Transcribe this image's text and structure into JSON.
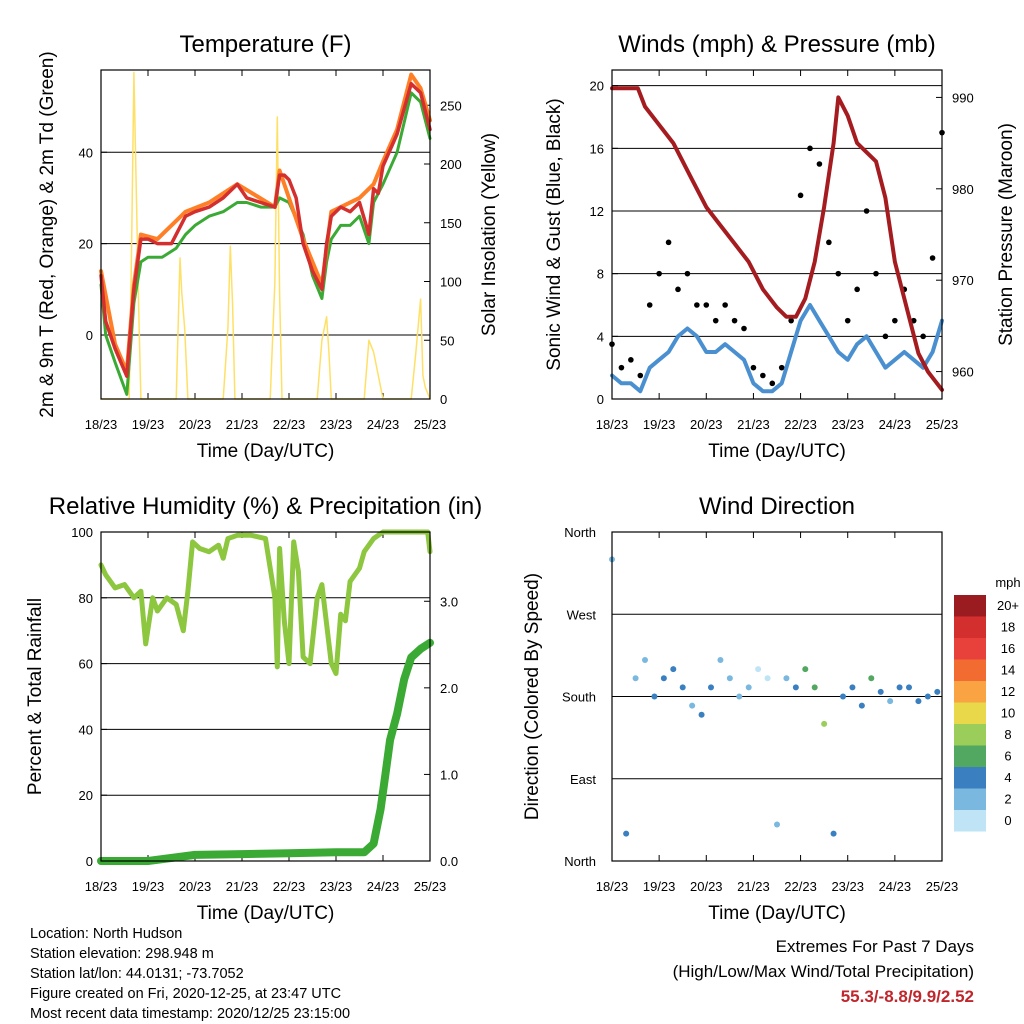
{
  "chart_data": [
    {
      "type": "line",
      "title": "Temperature (F)",
      "xlabel": "Time (Day/UTC)",
      "ylabel": "2m & 9m T (Red, Orange) & 2m Td (Green)",
      "ylabel_right": "Solar Insolation (Yellow)",
      "x_ticks": [
        "18/23",
        "19/23",
        "20/23",
        "21/23",
        "22/23",
        "23/23",
        "24/23",
        "25/23"
      ],
      "y_ticks": [
        "0",
        "20",
        "40"
      ],
      "y_ticks_right": [
        "0",
        "50",
        "100",
        "150",
        "200",
        "250"
      ],
      "ylim": [
        -14,
        58
      ],
      "ylim_right": [
        0,
        280
      ],
      "grid": true,
      "colors": {
        "t2m": "#d32f2f",
        "t9m": "#ff7f27",
        "td2m": "#3aaa35",
        "solar": "#ffe066"
      },
      "series": [
        {
          "key": "t2m",
          "x": [
            0,
            0.1,
            0.3,
            0.55,
            0.7,
            0.85,
            1.0,
            1.2,
            1.5,
            1.8,
            2.0,
            2.3,
            2.6,
            2.9,
            3.1,
            3.4,
            3.7,
            3.8,
            3.9,
            4.0,
            4.15,
            4.3,
            4.5,
            4.7,
            4.8,
            4.9,
            5.1,
            5.3,
            5.5,
            5.7,
            5.8,
            5.9,
            6.0,
            6.3,
            6.6,
            6.8,
            7.0
          ],
          "values": [
            13,
            3,
            -3,
            -9,
            10,
            21,
            21,
            20,
            20,
            26,
            27,
            28,
            30,
            33,
            30,
            29,
            28,
            35,
            35,
            34,
            30,
            20,
            14,
            10,
            20,
            26,
            28,
            27,
            29,
            22,
            32,
            31,
            37,
            44,
            55,
            53,
            45
          ]
        },
        {
          "key": "t9m",
          "x": [
            0,
            0.3,
            0.55,
            0.7,
            0.85,
            1.2,
            1.8,
            2.3,
            2.9,
            3.7,
            3.8,
            4.3,
            4.7,
            4.9,
            5.5,
            5.8,
            6.0,
            6.3,
            6.6,
            6.8,
            7.0
          ],
          "values": [
            14,
            -2,
            -8,
            11,
            22,
            21,
            27,
            29,
            33,
            28,
            36,
            21,
            11,
            27,
            30,
            33,
            38,
            45,
            57,
            54,
            47
          ]
        },
        {
          "key": "td2m",
          "x": [
            0,
            0.1,
            0.3,
            0.55,
            0.7,
            0.85,
            1.0,
            1.3,
            1.6,
            1.8,
            2.0,
            2.3,
            2.6,
            2.9,
            3.1,
            3.4,
            3.7,
            3.8,
            4.0,
            4.3,
            4.5,
            4.7,
            4.8,
            4.9,
            5.1,
            5.3,
            5.5,
            5.7,
            5.8,
            6.0,
            6.3,
            6.6,
            6.8,
            7.0
          ],
          "values": [
            11,
            0,
            -6,
            -13,
            7,
            16,
            17,
            17,
            19,
            22,
            24,
            26,
            27,
            29,
            29,
            28,
            28,
            30,
            29,
            22,
            13,
            8,
            16,
            21,
            24,
            24,
            26,
            20,
            29,
            33,
            40,
            53,
            51,
            43
          ]
        },
        {
          "key": "solar",
          "x": [
            0,
            0.6,
            0.65,
            0.7,
            0.8,
            0.85,
            1.0,
            1.6,
            1.68,
            1.72,
            1.78,
            1.85,
            2.0,
            2.6,
            2.7,
            2.75,
            2.8,
            2.85,
            3.0,
            3.6,
            3.7,
            3.75,
            3.8,
            3.85,
            4.0,
            4.6,
            4.7,
            4.8,
            4.85,
            4.9,
            5.0,
            5.6,
            5.7,
            5.8,
            5.9,
            6.0,
            6.6,
            6.7,
            6.8,
            6.85,
            6.9,
            7.0
          ],
          "values": [
            0,
            0,
            130,
            278,
            80,
            0,
            0,
            0,
            120,
            90,
            60,
            0,
            0,
            0,
            60,
            130,
            80,
            0,
            0,
            0,
            100,
            240,
            90,
            0,
            0,
            0,
            50,
            70,
            40,
            0,
            0,
            0,
            50,
            40,
            20,
            0,
            0,
            40,
            85,
            20,
            10,
            0
          ]
        }
      ]
    },
    {
      "type": "scatter",
      "title": "Winds (mph) & Pressure (mb)",
      "xlabel": "Time (Day/UTC)",
      "ylabel": "Sonic Wind & Gust (Blue, Black)",
      "ylabel_right": "Station Pressure (Maroon)",
      "x_ticks": [
        "18/23",
        "19/23",
        "20/23",
        "21/23",
        "22/23",
        "23/23",
        "24/23",
        "25/23"
      ],
      "y_ticks": [
        "0",
        "4",
        "8",
        "12",
        "16",
        "20"
      ],
      "y_ticks_right": [
        "960",
        "970",
        "980",
        "990"
      ],
      "ylim": [
        0,
        21
      ],
      "ylim_right": [
        957,
        993
      ],
      "grid": true,
      "colors": {
        "wind": "#4a90d0",
        "gust": "#000000",
        "pressure": "#a51c20"
      },
      "series": [
        {
          "key": "wind",
          "x": [
            0,
            0.2,
            0.4,
            0.6,
            0.8,
            1.0,
            1.2,
            1.4,
            1.6,
            1.8,
            2.0,
            2.2,
            2.4,
            2.6,
            2.8,
            3.0,
            3.2,
            3.4,
            3.6,
            3.8,
            4.0,
            4.2,
            4.4,
            4.6,
            4.8,
            5.0,
            5.2,
            5.4,
            5.6,
            5.8,
            6.0,
            6.2,
            6.4,
            6.6,
            6.8,
            7.0
          ],
          "values": [
            1.5,
            1,
            1,
            0.5,
            2,
            2.5,
            3,
            4,
            4.5,
            4,
            3,
            3,
            3.5,
            3,
            2.5,
            1,
            0.5,
            0.5,
            1,
            3,
            5,
            6,
            5,
            4,
            3,
            2.5,
            3.5,
            4,
            3,
            2,
            2.5,
            3,
            2.5,
            2,
            3,
            5
          ]
        },
        {
          "key": "gust",
          "x": [
            0,
            0.2,
            0.4,
            0.6,
            0.8,
            1.0,
            1.2,
            1.4,
            1.6,
            1.8,
            2.0,
            2.2,
            2.4,
            2.6,
            2.8,
            3.0,
            3.2,
            3.4,
            3.6,
            3.8,
            4.0,
            4.2,
            4.4,
            4.6,
            4.8,
            5.0,
            5.2,
            5.4,
            5.6,
            5.8,
            6.0,
            6.2,
            6.4,
            6.6,
            6.8,
            7.0
          ],
          "values": [
            3.5,
            2,
            2.5,
            1.5,
            6,
            8,
            10,
            7,
            8,
            6,
            6,
            5,
            6,
            5,
            4.5,
            2,
            1.5,
            1,
            2,
            5,
            13,
            16,
            15,
            10,
            8,
            5,
            7,
            12,
            8,
            4,
            5,
            7,
            5,
            4,
            9,
            17
          ]
        },
        {
          "key": "pressure",
          "x": [
            0,
            0.2,
            0.55,
            0.7,
            1.0,
            1.3,
            1.7,
            2.0,
            2.3,
            2.6,
            2.9,
            3.2,
            3.5,
            3.7,
            3.9,
            4.1,
            4.3,
            4.5,
            4.7,
            4.8,
            5.0,
            5.2,
            5.4,
            5.6,
            5.8,
            6.0,
            6.3,
            6.5,
            6.7,
            6.85,
            7.0
          ],
          "values": [
            991,
            991,
            991,
            989,
            987,
            985,
            981,
            978,
            976,
            974,
            972,
            969,
            967,
            966,
            966,
            968,
            972,
            978,
            985,
            990,
            988,
            985,
            984,
            983,
            979,
            972,
            966,
            962,
            960,
            959,
            958
          ]
        }
      ]
    },
    {
      "type": "line",
      "title": "Relative Humidity (%) & Precipitation (in)",
      "xlabel": "Time (Day/UTC)",
      "ylabel": "Percent & Total Rainfall",
      "x_ticks": [
        "18/23",
        "19/23",
        "20/23",
        "21/23",
        "22/23",
        "23/23",
        "24/23",
        "25/23"
      ],
      "y_ticks": [
        "0",
        "20",
        "40",
        "60",
        "80",
        "100"
      ],
      "y_ticks_right": [
        "0.0",
        "1.0",
        "2.0",
        "3.0"
      ],
      "ylim": [
        0,
        100
      ],
      "ylim_right": [
        0,
        3.8
      ],
      "grid": true,
      "colors": {
        "rh": "#8dc63f",
        "precip": "#3aaa35"
      },
      "series": [
        {
          "key": "rh",
          "x": [
            0,
            0.1,
            0.3,
            0.5,
            0.7,
            0.85,
            0.95,
            1.1,
            1.2,
            1.4,
            1.6,
            1.75,
            1.85,
            1.95,
            2.1,
            2.3,
            2.5,
            2.6,
            2.7,
            2.9,
            3.2,
            3.5,
            3.7,
            3.75,
            3.8,
            3.9,
            4.0,
            4.1,
            4.2,
            4.3,
            4.45,
            4.6,
            4.7,
            4.8,
            4.9,
            5.0,
            5.1,
            5.2,
            5.3,
            5.5,
            5.6,
            5.8,
            6.0,
            6.2,
            6.4,
            6.6,
            6.8,
            6.95,
            7.0
          ],
          "values": [
            90,
            87,
            83,
            84,
            80,
            82,
            66,
            80,
            76,
            80,
            78,
            70,
            82,
            97,
            95,
            94,
            96,
            92,
            98,
            99,
            99,
            98,
            80,
            59,
            95,
            73,
            60,
            97,
            88,
            62,
            60,
            80,
            84,
            72,
            60,
            57,
            75,
            73,
            85,
            89,
            94,
            98,
            100,
            100,
            100,
            100,
            100,
            100,
            94
          ]
        },
        {
          "key": "precip",
          "x": [
            0,
            1.0,
            2.0,
            3.0,
            4.0,
            5.0,
            5.4,
            5.6,
            5.8,
            5.95,
            6.05,
            6.15,
            6.3,
            6.45,
            6.6,
            6.8,
            7.0
          ],
          "values": [
            0.0,
            0.0,
            0.07,
            0.08,
            0.09,
            0.1,
            0.1,
            0.1,
            0.2,
            0.6,
            1.0,
            1.4,
            1.7,
            2.1,
            2.35,
            2.45,
            2.52
          ]
        }
      ]
    },
    {
      "type": "scatter",
      "title": "Wind Direction",
      "xlabel": "Time (Day/UTC)",
      "ylabel": "Direction (Colored By Speed)",
      "x_ticks": [
        "18/23",
        "19/23",
        "20/23",
        "21/23",
        "22/23",
        "23/23",
        "24/23",
        "25/23"
      ],
      "y_ticks": [
        "North",
        "East",
        "South",
        "West",
        "North"
      ],
      "ylim": [
        0,
        360
      ],
      "grid": true,
      "legend_title": "mph",
      "legend_labels": [
        "20+",
        "18",
        "16",
        "14",
        "12",
        "10",
        "8",
        "6",
        "4",
        "2",
        "0"
      ],
      "legend_colors": [
        "#9b1c20",
        "#d32f2f",
        "#e8413c",
        "#f26b30",
        "#f9a342",
        "#e8d84a",
        "#9acd5a",
        "#52a860",
        "#3a7fc0",
        "#7ab8e0",
        "#bfe4f6"
      ],
      "x": [
        0,
        0.3,
        0.5,
        0.7,
        0.9,
        1.1,
        1.3,
        1.5,
        1.7,
        1.9,
        2.1,
        2.3,
        2.5,
        2.7,
        2.9,
        3.1,
        3.3,
        3.5,
        3.7,
        3.9,
        4.1,
        4.3,
        4.5,
        4.7,
        4.9,
        5.1,
        5.3,
        5.5,
        5.7,
        5.9,
        6.1,
        6.3,
        6.5,
        6.7,
        6.9
      ],
      "values": [
        330,
        30,
        200,
        220,
        180,
        200,
        210,
        190,
        170,
        160,
        190,
        220,
        200,
        180,
        190,
        210,
        200,
        40,
        200,
        190,
        210,
        190,
        150,
        30,
        180,
        190,
        170,
        200,
        185,
        175,
        190,
        190,
        175,
        180,
        185
      ],
      "speeds": [
        1,
        3,
        2,
        2,
        4,
        3,
        4,
        3,
        2,
        3,
        3,
        2,
        2,
        1,
        1,
        0,
        0,
        1,
        1,
        3,
        5,
        6,
        8,
        4,
        3,
        3,
        4,
        5,
        3,
        2,
        3,
        4,
        3,
        3,
        4
      ]
    }
  ],
  "info": {
    "location": "Location: North Hudson",
    "elevation": "Station elevation: 298.948 m",
    "latlon": "Station lat/lon: 44.0131; -73.7052",
    "created": "Figure created on Fri, 2020-12-25, at 23:47 UTC",
    "recent": "Most recent data timestamp: 2020/12/25 23:15:00"
  },
  "extremes": {
    "line1": "Extremes For Past 7 Days",
    "line2": "(High/Low/Max Wind/Total Precipitation)",
    "values": "55.3/-8.8/9.9/2.52"
  }
}
